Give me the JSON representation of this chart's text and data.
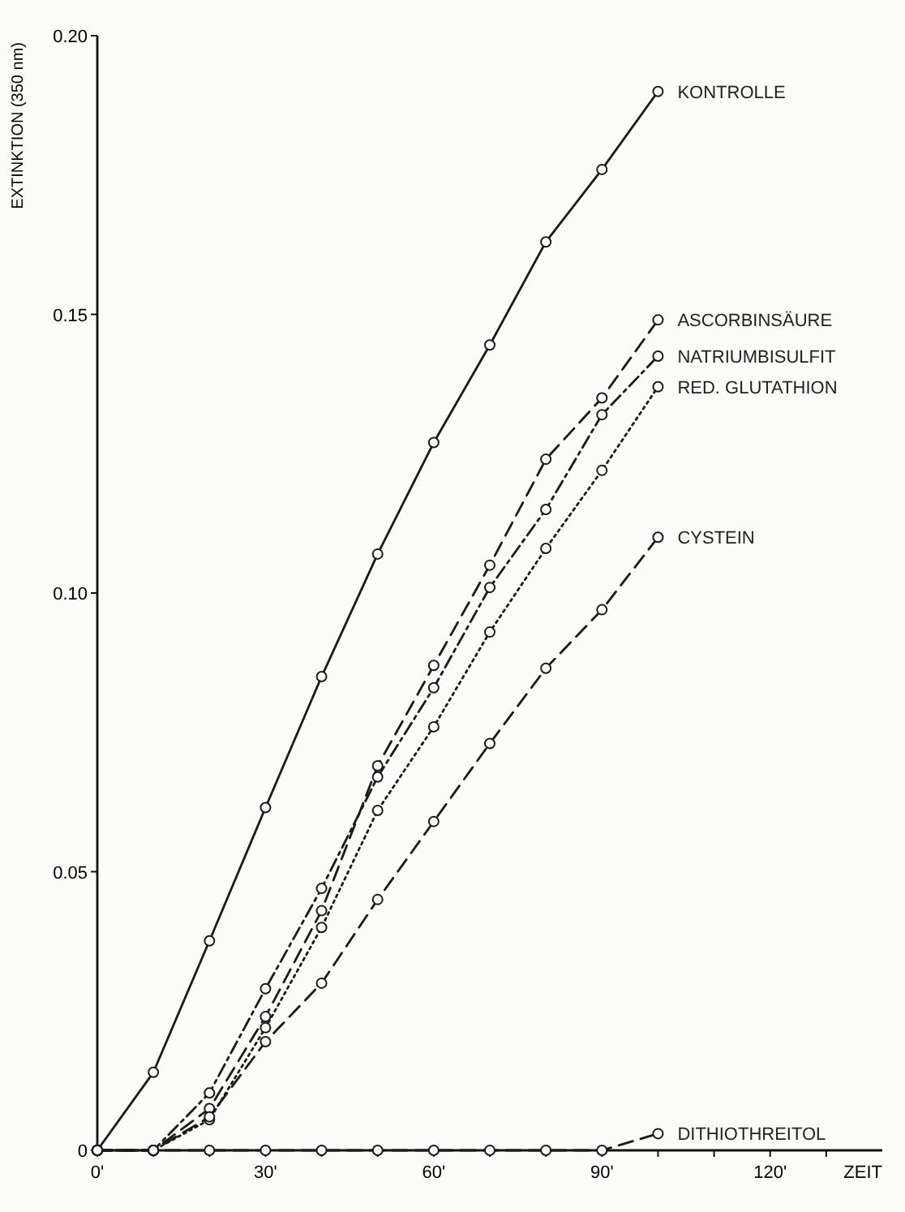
{
  "chart_data": {
    "type": "line",
    "xlabel": "ZEIT",
    "ylabel": "EXTINKTION (350 nm)",
    "marker": "circle",
    "x": [
      0,
      10,
      20,
      30,
      40,
      50,
      60,
      70,
      80,
      90,
      100
    ],
    "xlim": [
      0,
      140
    ],
    "xticks": [
      {
        "value": 0,
        "label": "0'"
      },
      {
        "value": 10,
        "label": null
      },
      {
        "value": 20,
        "label": null
      },
      {
        "value": 30,
        "label": "30'"
      },
      {
        "value": 40,
        "label": null
      },
      {
        "value": 50,
        "label": null
      },
      {
        "value": 60,
        "label": "60'"
      },
      {
        "value": 70,
        "label": null
      },
      {
        "value": 80,
        "label": null
      },
      {
        "value": 90,
        "label": "90'"
      },
      {
        "value": 100,
        "label": null
      },
      {
        "value": 110,
        "label": null
      },
      {
        "value": 120,
        "label": "120'"
      },
      {
        "value": 130,
        "label": null
      }
    ],
    "ylim": [
      0,
      0.2
    ],
    "yticks": [
      0,
      {
        "value": 0.05,
        "label": "0.05"
      },
      {
        "value": 0.1,
        "label": "0.10"
      },
      {
        "value": 0.15,
        "label": "0.15"
      },
      {
        "value": 0.2,
        "label": "0.20"
      }
    ],
    "series": [
      {
        "name": "KONTROLLE",
        "color": "#1a1a1a",
        "line_style": "solid",
        "values": [
          0,
          0.014,
          0.0376,
          0.0615,
          0.085,
          0.107,
          0.127,
          0.1445,
          0.163,
          0.176,
          0.19
        ]
      },
      {
        "name": "ASCORBINSÄURE",
        "color": "#1a1a1a",
        "line_style": "dashed",
        "values": [
          0,
          0,
          0.0075,
          0.024,
          0.043,
          0.069,
          0.087,
          0.105,
          0.124,
          0.135,
          0.149
        ]
      },
      {
        "name": "NATRIUMBISULFIT",
        "color": "#1a1a1a",
        "line_style": "dashdot",
        "values": [
          0,
          0,
          0.0103,
          0.029,
          0.047,
          0.067,
          0.083,
          0.101,
          0.115,
          0.132,
          0.1425
        ]
      },
      {
        "name": "RED. GLUTATHION",
        "color": "#1a1a1a",
        "line_style": "dotted",
        "values": [
          0,
          0,
          0.0055,
          0.022,
          0.04,
          0.061,
          0.076,
          0.093,
          0.108,
          0.122,
          0.137
        ]
      },
      {
        "name": "CYSTEIN",
        "color": "#1a1a1a",
        "line_style": "dashed",
        "values": [
          0,
          0,
          0.006,
          0.0195,
          0.03,
          0.045,
          0.059,
          0.073,
          0.0865,
          0.097,
          0.11
        ]
      },
      {
        "name": "DITHIOTHREITOL",
        "color": "#1a1a1a",
        "line_style": "dashed",
        "values": [
          0,
          0,
          0,
          0,
          0,
          0,
          0,
          0,
          0,
          0,
          0.003
        ]
      }
    ]
  }
}
